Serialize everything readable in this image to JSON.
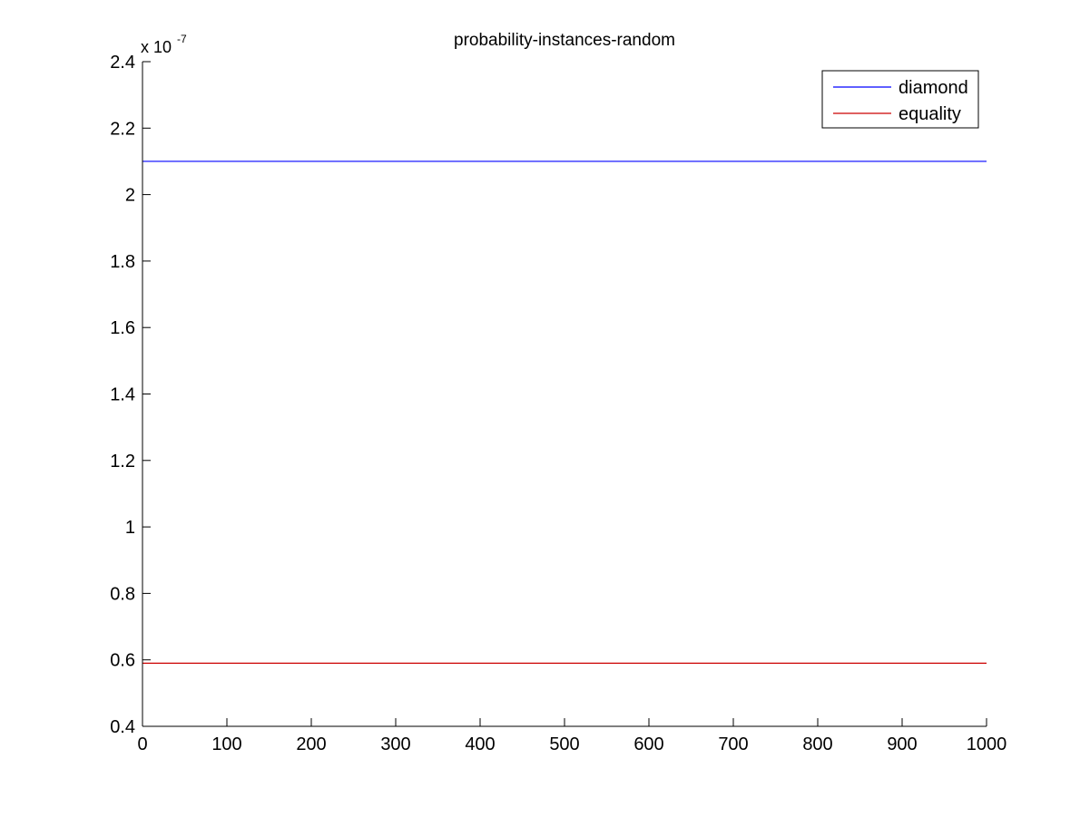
{
  "chart_data": {
    "type": "line",
    "title": "probability-instances-random",
    "xlabel": "",
    "ylabel": "",
    "xlim": [
      0,
      1000
    ],
    "ylim": [
      0.4,
      2.4
    ],
    "y_multiplier_base": "x 10",
    "y_multiplier_exponent": "-7",
    "xticks": [
      0,
      100,
      200,
      300,
      400,
      500,
      600,
      700,
      800,
      900,
      1000
    ],
    "xtick_labels": [
      "0",
      "100",
      "200",
      "300",
      "400",
      "500",
      "600",
      "700",
      "800",
      "900",
      "1000"
    ],
    "yticks": [
      0.4,
      0.6,
      0.8,
      1.0,
      1.2,
      1.4,
      1.6,
      1.8,
      2.0,
      2.2,
      2.4
    ],
    "ytick_labels": [
      "0.4",
      "0.6",
      "0.8",
      "1",
      "1.2",
      "1.4",
      "1.6",
      "1.8",
      "2",
      "2.2",
      "2.4"
    ],
    "grid": false,
    "legend_position": "top-right",
    "series": [
      {
        "name": "diamond",
        "color": "#0000ff",
        "x": [
          0,
          1000
        ],
        "y": [
          2.1,
          2.1
        ]
      },
      {
        "name": "equality",
        "color": "#cc0000",
        "x": [
          0,
          1000
        ],
        "y": [
          0.59,
          0.59
        ]
      }
    ]
  }
}
